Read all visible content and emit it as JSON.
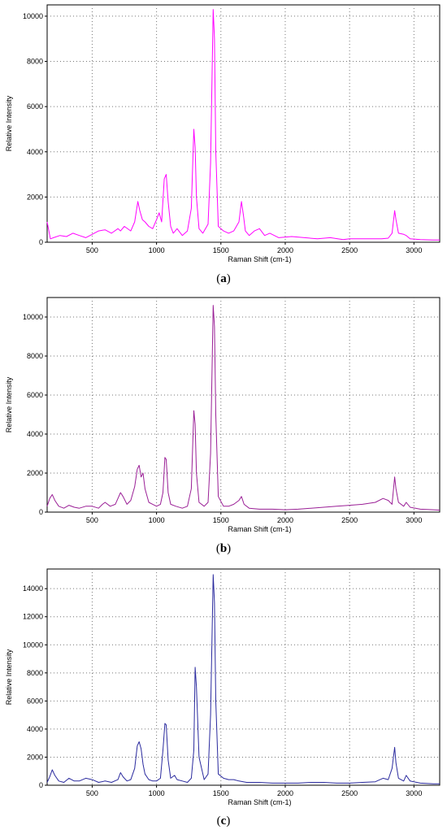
{
  "chart_data": [
    {
      "type": "line",
      "caption_letter": "a",
      "xlabel": "Raman Shift (cm-1)",
      "ylabel": "Relative Intensity",
      "xlim": [
        150,
        3200
      ],
      "ylim": [
        0,
        10500
      ],
      "xticks": [
        500,
        1000,
        1500,
        2000,
        2500,
        3000
      ],
      "yticks": [
        0,
        2000,
        4000,
        6000,
        8000,
        10000
      ],
      "grid": true,
      "series": [
        {
          "color": "#ff00ff",
          "x": [
            150,
            160,
            175,
            200,
            250,
            300,
            350,
            400,
            450,
            500,
            550,
            600,
            650,
            700,
            720,
            750,
            800,
            830,
            855,
            870,
            890,
            910,
            940,
            970,
            1000,
            1020,
            1040,
            1060,
            1075,
            1090,
            1110,
            1130,
            1160,
            1200,
            1240,
            1270,
            1290,
            1300,
            1310,
            1330,
            1360,
            1400,
            1420,
            1440,
            1450,
            1460,
            1480,
            1520,
            1560,
            1600,
            1640,
            1660,
            1675,
            1690,
            1720,
            1760,
            1800,
            1840,
            1880,
            1950,
            2050,
            2150,
            2250,
            2350,
            2450,
            2500,
            2550,
            2650,
            2750,
            2800,
            2830,
            2850,
            2860,
            2880,
            2920,
            2940,
            2970,
            3050,
            3150,
            3200
          ],
          "y": [
            900,
            600,
            150,
            200,
            300,
            250,
            400,
            300,
            200,
            350,
            500,
            550,
            400,
            600,
            500,
            700,
            500,
            900,
            1800,
            1400,
            1000,
            900,
            700,
            600,
            1000,
            1300,
            900,
            2800,
            3000,
            1800,
            700,
            400,
            600,
            300,
            500,
            1500,
            5000,
            4200,
            2000,
            600,
            400,
            800,
            3500,
            10300,
            9000,
            4000,
            700,
            500,
            400,
            500,
            900,
            1800,
            1200,
            500,
            300,
            500,
            600,
            300,
            400,
            200,
            250,
            200,
            150,
            200,
            120,
            150,
            150,
            150,
            150,
            180,
            400,
            1400,
            1000,
            400,
            350,
            300,
            150,
            120,
            100,
            100
          ]
        }
      ]
    },
    {
      "type": "line",
      "caption_letter": "b",
      "xlabel": "Raman Shift (cm-1)",
      "ylabel": "Relative Intensity",
      "xlim": [
        150,
        3200
      ],
      "ylim": [
        0,
        11000
      ],
      "xticks": [
        500,
        1000,
        1500,
        2000,
        2500,
        3000
      ],
      "yticks": [
        0,
        2000,
        4000,
        6000,
        8000,
        10000
      ],
      "grid": true,
      "series": [
        {
          "color": "#9a1f96",
          "x": [
            150,
            170,
            190,
            210,
            240,
            280,
            320,
            360,
            400,
            450,
            500,
            550,
            580,
            600,
            640,
            680,
            700,
            720,
            740,
            770,
            800,
            830,
            850,
            865,
            880,
            895,
            910,
            940,
            970,
            1000,
            1030,
            1050,
            1065,
            1075,
            1090,
            1110,
            1150,
            1200,
            1240,
            1270,
            1290,
            1300,
            1310,
            1330,
            1370,
            1400,
            1420,
            1440,
            1450,
            1460,
            1480,
            1520,
            1560,
            1600,
            1640,
            1660,
            1680,
            1720,
            1800,
            1900,
            2000,
            2100,
            2200,
            2300,
            2400,
            2500,
            2600,
            2700,
            2760,
            2800,
            2830,
            2850,
            2860,
            2880,
            2920,
            2940,
            2970,
            3050,
            3150,
            3200
          ],
          "y": [
            300,
            700,
            900,
            600,
            300,
            200,
            350,
            250,
            200,
            300,
            300,
            200,
            400,
            500,
            300,
            400,
            700,
            1000,
            800,
            400,
            600,
            1300,
            2200,
            2400,
            1800,
            2000,
            1200,
            500,
            400,
            300,
            400,
            1000,
            2800,
            2700,
            1000,
            400,
            300,
            200,
            300,
            1200,
            5200,
            4500,
            2000,
            500,
            300,
            500,
            3000,
            10600,
            9500,
            5000,
            800,
            300,
            300,
            400,
            600,
            800,
            400,
            200,
            150,
            150,
            120,
            150,
            200,
            250,
            300,
            350,
            400,
            500,
            700,
            600,
            400,
            1800,
            1200,
            500,
            300,
            500,
            250,
            150,
            120,
            100
          ]
        }
      ]
    },
    {
      "type": "line",
      "caption_letter": "c",
      "xlabel": "Raman Shift (cm-1)",
      "ylabel": "Relative Intensity",
      "xlim": [
        150,
        3200
      ],
      "ylim": [
        0,
        15400
      ],
      "xticks": [
        500,
        1000,
        1500,
        2000,
        2500,
        3000
      ],
      "yticks": [
        0,
        2000,
        4000,
        6000,
        8000,
        10000,
        12000,
        14000
      ],
      "grid": true,
      "series": [
        {
          "color": "#2a2a9e",
          "x": [
            150,
            170,
            190,
            210,
            240,
            280,
            320,
            360,
            400,
            450,
            500,
            550,
            600,
            650,
            700,
            720,
            740,
            770,
            800,
            830,
            850,
            865,
            880,
            895,
            910,
            940,
            970,
            1000,
            1030,
            1050,
            1065,
            1075,
            1090,
            1110,
            1140,
            1160,
            1200,
            1240,
            1270,
            1290,
            1300,
            1310,
            1330,
            1370,
            1400,
            1420,
            1440,
            1450,
            1460,
            1480,
            1520,
            1560,
            1600,
            1640,
            1700,
            1800,
            1900,
            2000,
            2100,
            2200,
            2300,
            2400,
            2500,
            2600,
            2700,
            2760,
            2800,
            2830,
            2850,
            2860,
            2880,
            2920,
            2940,
            2970,
            3050,
            3150,
            3200
          ],
          "y": [
            200,
            600,
            1100,
            700,
            300,
            200,
            500,
            300,
            300,
            500,
            400,
            200,
            300,
            200,
            400,
            900,
            600,
            300,
            400,
            1200,
            2800,
            3100,
            2600,
            1500,
            800,
            400,
            300,
            300,
            500,
            2500,
            4400,
            4300,
            1800,
            500,
            700,
            400,
            300,
            200,
            500,
            2500,
            8400,
            7000,
            2000,
            400,
            800,
            5000,
            15000,
            13000,
            6000,
            800,
            500,
            400,
            400,
            300,
            200,
            200,
            150,
            150,
            150,
            200,
            200,
            150,
            150,
            200,
            250,
            500,
            400,
            1200,
            2700,
            1600,
            500,
            300,
            700,
            300,
            150,
            100,
            100
          ]
        }
      ]
    }
  ]
}
